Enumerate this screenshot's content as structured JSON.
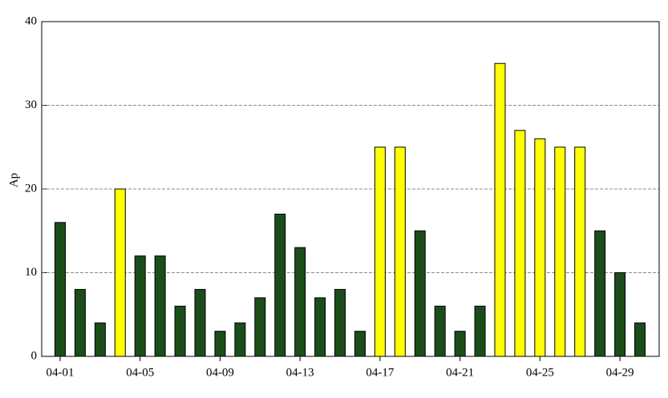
{
  "chart_data": {
    "type": "bar",
    "ylabel": "Ap",
    "categories": [
      "04-01",
      null,
      null,
      null,
      "04-05",
      null,
      null,
      null,
      "04-09",
      null,
      null,
      null,
      "04-13",
      null,
      null,
      null,
      "04-17",
      null,
      null,
      null,
      "04-21",
      null,
      null,
      null,
      "04-25",
      null,
      null,
      null,
      "04-29",
      null
    ],
    "values": [
      16,
      8,
      4,
      20,
      12,
      12,
      6,
      8,
      3,
      4,
      7,
      17,
      13,
      7,
      8,
      3,
      25,
      25,
      15,
      6,
      3,
      6,
      35,
      27,
      26,
      25,
      25,
      15,
      10,
      4
    ],
    "colors": [
      "#1b4d1b",
      "#1b4d1b",
      "#1b4d1b",
      "#ffff00",
      "#1b4d1b",
      "#1b4d1b",
      "#1b4d1b",
      "#1b4d1b",
      "#1b4d1b",
      "#1b4d1b",
      "#1b4d1b",
      "#1b4d1b",
      "#1b4d1b",
      "#1b4d1b",
      "#1b4d1b",
      "#1b4d1b",
      "#ffff00",
      "#ffff00",
      "#1b4d1b",
      "#1b4d1b",
      "#1b4d1b",
      "#1b4d1b",
      "#ffff00",
      "#ffff00",
      "#ffff00",
      "#ffff00",
      "#ffff00",
      "#1b4d1b",
      "#1b4d1b",
      "#1b4d1b"
    ],
    "ylim": [
      0,
      40
    ],
    "yticks": [
      0,
      10,
      20,
      30,
      40
    ],
    "grid": true
  }
}
